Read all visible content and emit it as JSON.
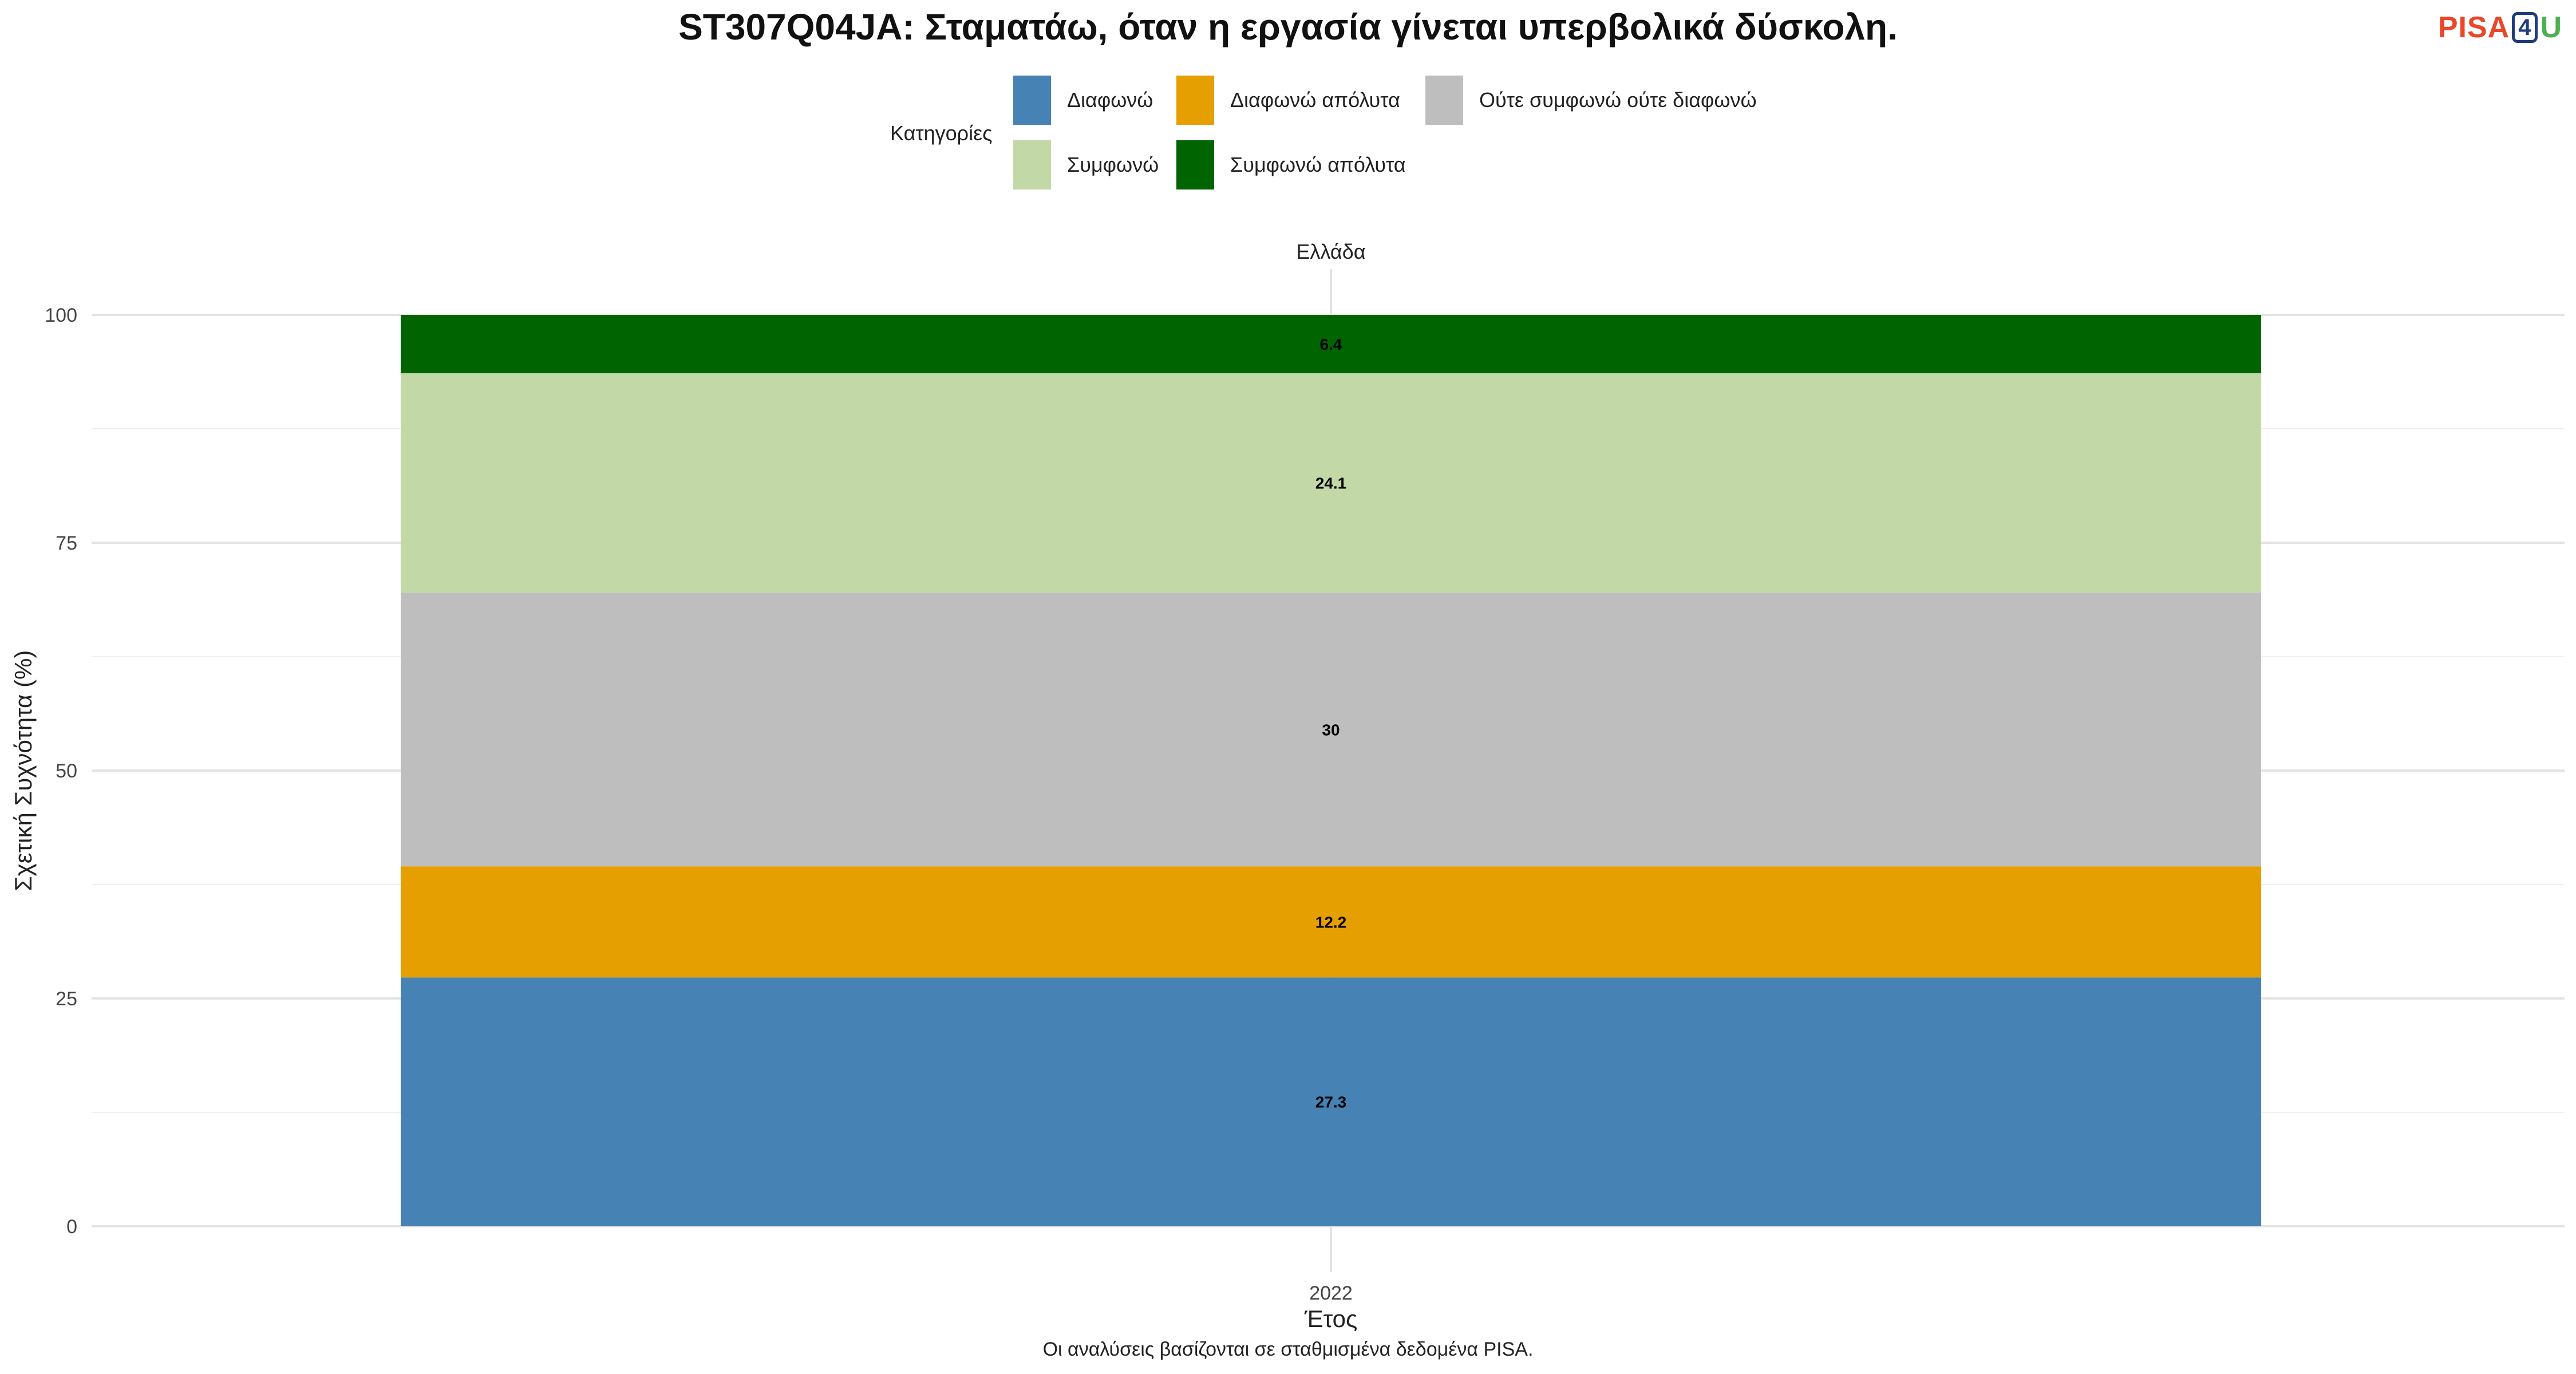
{
  "chart_data": {
    "type": "bar",
    "stacked": true,
    "title": "ST307Q04JA: Σταματάω, όταν η εργασία γίνεται υπερβολικά δύσκολη.",
    "facet_label": "Ελλάδα",
    "xlabel": "Έτος",
    "ylabel": "Σχετική Συχνότητα (%)",
    "categories": [
      "2022"
    ],
    "ylim": [
      0,
      100
    ],
    "yticks": [
      0,
      25,
      50,
      75,
      100
    ],
    "grid": true,
    "legend": {
      "title": "Κατηγορίες",
      "placement": "top"
    },
    "series": [
      {
        "name": "Διαφωνώ",
        "values": [
          27.3
        ],
        "label": "27.3",
        "color": "#4682b4"
      },
      {
        "name": "Διαφωνώ απόλυτα",
        "values": [
          12.2
        ],
        "label": "12.2",
        "color": "#e69f00"
      },
      {
        "name": "Ούτε συμφωνώ ούτε διαφωνώ",
        "values": [
          30
        ],
        "label": "30",
        "color": "#bebebe"
      },
      {
        "name": "Συμφωνώ",
        "values": [
          24.1
        ],
        "label": "24.1",
        "color": "#c3d8a7"
      },
      {
        "name": "Συμφωνώ απόλυτα",
        "values": [
          6.4
        ],
        "label": "6.4",
        "color": "#006400"
      }
    ],
    "caption": "Οι αναλύσεις βασίζονται σε σταθμισμένα δεδομένα PISA."
  },
  "logo": {
    "pisa": "PISA",
    "four": "4",
    "u": "U"
  }
}
